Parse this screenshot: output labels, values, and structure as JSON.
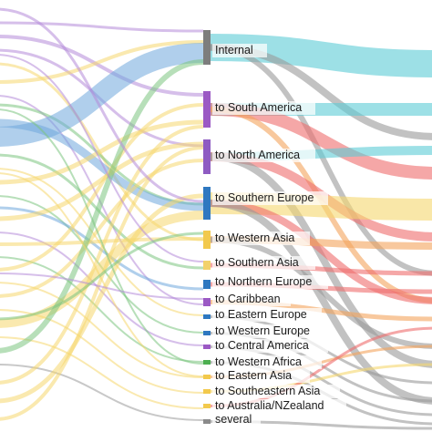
{
  "diagram": {
    "type": "sankey",
    "colors": {
      "internal": "#7d7d7d",
      "to_south_america": "#9b59c4",
      "to_north_america": "#8e5bc2",
      "to_southern_europe": "#2e78c0",
      "to_western_asia": "#f2c94c",
      "to_southern_asia": "#f2d16b",
      "to_northern_europe": "#2e78c0",
      "to_caribbean": "#9b59c4",
      "to_eastern_europe": "#2e78c0",
      "to_western_europe": "#2e78c0",
      "to_central_america": "#9b59c4",
      "to_western_africa": "#4caf50",
      "to_eastern_asia": "#f2c94c",
      "to_southeastern_asia": "#f2c94c",
      "to_australia_nzealand": "#f2c94c",
      "several": "#8a8a8a",
      "flow_teal": "#5ccbd6",
      "flow_red": "#ef6d6d",
      "flow_orange": "#f4a35b",
      "flow_grey": "#9a9a9a",
      "flow_yellow": "#f5d76e",
      "flow_purple": "#b48ad8",
      "flow_blue": "#6fa8dc",
      "flow_green": "#7cc47f"
    },
    "nodes": [
      {
        "id": "internal",
        "label": "Internal",
        "value": 20
      },
      {
        "id": "to_south_america",
        "label": "to South America",
        "value": 12
      },
      {
        "id": "to_north_america",
        "label": "to North America",
        "value": 11
      },
      {
        "id": "to_southern_europe",
        "label": "to Southern Europe",
        "value": 13
      },
      {
        "id": "to_western_asia",
        "label": "to Western Asia",
        "value": 6
      },
      {
        "id": "to_southern_asia",
        "label": "to Southern Asia",
        "value": 3
      },
      {
        "id": "to_northern_europe",
        "label": "to Northern Europe",
        "value": 3
      },
      {
        "id": "to_caribbean",
        "label": "to Caribbean",
        "value": 2
      },
      {
        "id": "to_eastern_europe",
        "label": "to Eastern Europe",
        "value": 1
      },
      {
        "id": "to_western_europe",
        "label": "to Western Europe",
        "value": 1
      },
      {
        "id": "to_central_america",
        "label": "to Central America",
        "value": 1
      },
      {
        "id": "to_western_africa",
        "label": "to Western Africa",
        "value": 1
      },
      {
        "id": "to_eastern_asia",
        "label": "to Eastern Asia",
        "value": 1
      },
      {
        "id": "to_southeastern_asia",
        "label": "to Southeastern Asia",
        "value": 1
      },
      {
        "id": "to_australia_nzealand",
        "label": "to Australia/NZealand",
        "value": 1
      },
      {
        "id": "several",
        "label": "several",
        "value": 1
      }
    ]
  }
}
